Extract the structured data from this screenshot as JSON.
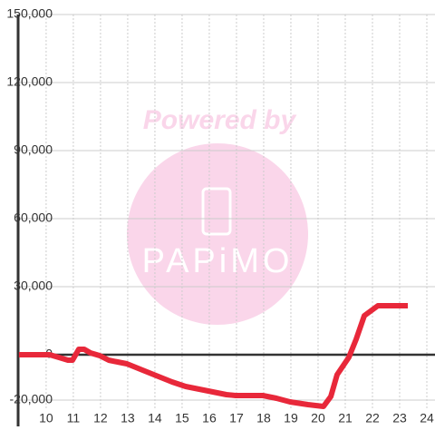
{
  "chart_data": {
    "type": "line",
    "x": [
      9,
      10.13,
      10.47,
      10.8,
      10.97,
      11.2,
      11.4,
      11.63,
      11.97,
      12.3,
      12.63,
      12.97,
      13.3,
      13.63,
      14.13,
      14.63,
      15.13,
      15.63,
      16.13,
      16.63,
      16.97,
      17.97,
      18.47,
      18.97,
      19.63,
      20.2,
      20.47,
      20.7,
      21.13,
      21.4,
      21.7,
      22.2,
      23.3
    ],
    "series": [
      {
        "color": "#e8283a",
        "values": [
          0,
          0,
          -1200,
          -2400,
          -2400,
          2400,
          2400,
          800,
          -400,
          -2400,
          -3200,
          -4000,
          -5600,
          -7200,
          -9600,
          -12000,
          -14000,
          -15200,
          -16400,
          -17600,
          -18000,
          -18000,
          -19200,
          -20800,
          -22000,
          -22800,
          -18400,
          -8800,
          -1200,
          6800,
          17200,
          21600,
          21600
        ]
      }
    ],
    "xlim": [
      8.97,
      24.3
    ],
    "xticks": [
      10,
      11,
      12,
      13,
      14,
      15,
      16,
      17,
      18,
      19,
      20,
      21,
      22,
      23,
      24
    ],
    "ylim": [
      -24400,
      150000
    ],
    "yticks": [
      {
        "value": -20000,
        "label": "-20,000"
      },
      0,
      {
        "value": 30000,
        "label": "30,000"
      },
      {
        "value": 60000,
        "label": "60,000"
      },
      {
        "value": 90000,
        "label": "90,000"
      },
      {
        "value": 120000,
        "label": "120,000"
      },
      {
        "value": 150000,
        "label": "150,000"
      }
    ],
    "grid": true,
    "watermark_top": "Powered by",
    "watermark_brand": "PAPiMO"
  }
}
